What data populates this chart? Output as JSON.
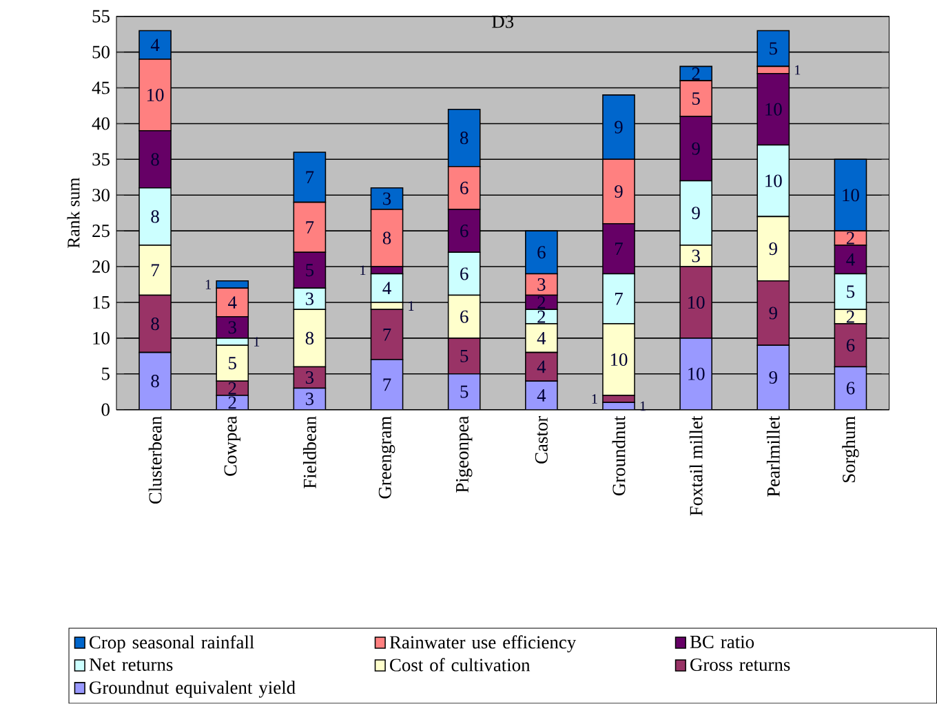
{
  "chart_data": {
    "type": "bar",
    "title": "D3",
    "ylabel": "Rank sum",
    "stacked": true,
    "data_labels": true,
    "grid": "y",
    "legend": "bottom",
    "categories": [
      "Clusterbean",
      "Cowpea",
      "Fieldbean",
      "Greengram",
      "Pigeonpea",
      "Castor",
      "Groundnut",
      "Foxtail millet",
      "Pearlmillet",
      "Sorghum"
    ],
    "ylim": [
      0,
      55
    ],
    "yticks": [
      0,
      5,
      10,
      15,
      20,
      25,
      30,
      35,
      40,
      45,
      50,
      55
    ],
    "series": [
      {
        "name": "Groundnut equivalent yield",
        "color": "#9999ff",
        "values": [
          8,
          2,
          3,
          7,
          5,
          4,
          1,
          10,
          9,
          6
        ]
      },
      {
        "name": "Gross returns",
        "color": "#993366",
        "values": [
          8,
          2,
          3,
          7,
          5,
          4,
          1,
          10,
          9,
          6
        ]
      },
      {
        "name": "Cost of cultivation",
        "color": "#ffffcc",
        "values": [
          7,
          5,
          8,
          1,
          6,
          4,
          10,
          3,
          9,
          2
        ]
      },
      {
        "name": "Net returns",
        "color": "#ccffff",
        "values": [
          8,
          1,
          3,
          4,
          6,
          2,
          7,
          9,
          10,
          5
        ]
      },
      {
        "name": "BC ratio",
        "color": "#660066",
        "values": [
          8,
          3,
          5,
          1,
          6,
          2,
          7,
          9,
          10,
          4
        ]
      },
      {
        "name": "Rainwater use efficiency",
        "color": "#ff8080",
        "values": [
          10,
          4,
          7,
          8,
          6,
          3,
          9,
          5,
          1,
          2
        ]
      },
      {
        "name": "Crop seasonal rainfall",
        "color": "#0066cc",
        "values": [
          4,
          1,
          7,
          3,
          8,
          6,
          9,
          2,
          5,
          10
        ]
      }
    ]
  }
}
